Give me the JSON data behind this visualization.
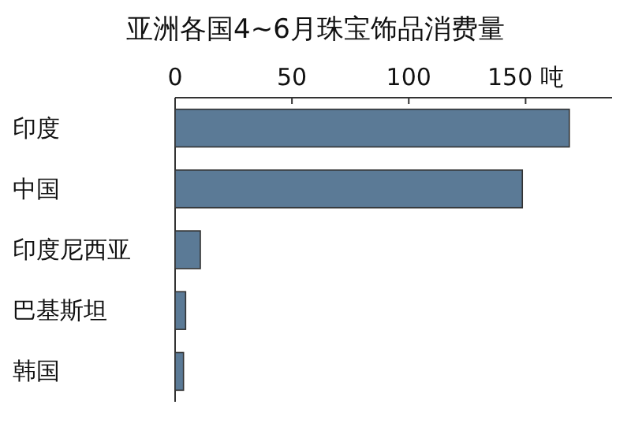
{
  "chart_data": {
    "type": "bar",
    "orientation": "horizontal",
    "title": "亚洲各国4~6月珠宝饰品消费量",
    "categories": [
      "印度",
      "中国",
      "印度尼西亚",
      "巴基斯坦",
      "韩国"
    ],
    "values": [
      168.7,
      148.6,
      10.8,
      4.5,
      3.6
    ],
    "color": "#5b7a96",
    "xlim": [
      0,
      187
    ],
    "xticks": [
      0,
      50,
      100,
      {
        "value": 150,
        "label": "150 吨"
      }
    ]
  }
}
